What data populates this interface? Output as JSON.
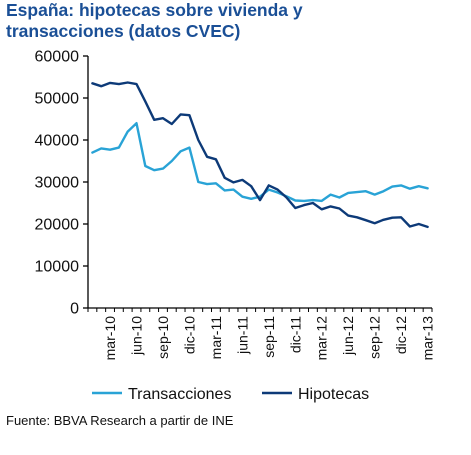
{
  "title_lines": [
    "España: hipotecas sobre vivienda y",
    "transacciones (datos CVEC)"
  ],
  "source": "Fuente: BBVA Research a partir de INE",
  "chart_data": {
    "type": "line",
    "title": "España: hipotecas sobre vivienda y transacciones (datos CVEC)",
    "xlabel": "",
    "ylabel": "",
    "ylim": [
      0,
      60000
    ],
    "yticks": [
      0,
      10000,
      20000,
      30000,
      40000,
      50000,
      60000
    ],
    "x_tick_labels": [
      "mar-10",
      "jun-10",
      "sep-10",
      "dic-10",
      "mar-11",
      "jun-11",
      "sep-11",
      "dic-11",
      "mar-12",
      "jun-12",
      "sep-12",
      "dic-12",
      "mar-13"
    ],
    "x": [
      "ene-10",
      "feb-10",
      "mar-10",
      "abr-10",
      "may-10",
      "jun-10",
      "jul-10",
      "ago-10",
      "sep-10",
      "oct-10",
      "nov-10",
      "dic-10",
      "ene-11",
      "feb-11",
      "mar-11",
      "abr-11",
      "may-11",
      "jun-11",
      "jul-11",
      "ago-11",
      "sep-11",
      "oct-11",
      "nov-11",
      "dic-11",
      "ene-12",
      "feb-12",
      "mar-12",
      "abr-12",
      "may-12",
      "jun-12",
      "jul-12",
      "ago-12",
      "sep-12",
      "oct-12",
      "nov-12",
      "dic-12",
      "ene-13",
      "feb-13",
      "mar-13"
    ],
    "grid": false,
    "legend_position": "bottom",
    "series": [
      {
        "name": "Transacciones",
        "color": "#29a3d6",
        "values": [
          37000,
          38000,
          37700,
          38200,
          42000,
          44000,
          33800,
          32800,
          33200,
          35000,
          37300,
          38200,
          30000,
          29500,
          29700,
          28000,
          28200,
          26500,
          26000,
          26500,
          28200,
          27500,
          26600,
          25600,
          25500,
          25700,
          25500,
          27000,
          26300,
          27400,
          27600,
          27800,
          27000,
          27800,
          28900,
          29200,
          28400,
          29000,
          28500
        ]
      },
      {
        "name": "Hipotecas",
        "color": "#0d3a78",
        "values": [
          53500,
          52800,
          53600,
          53300,
          53700,
          53300,
          49200,
          44800,
          45200,
          43800,
          46100,
          45900,
          40000,
          36000,
          35400,
          31000,
          29900,
          30500,
          29000,
          25700,
          29200,
          28200,
          26300,
          23800,
          24500,
          25000,
          23500,
          24200,
          23700,
          22000,
          21600,
          20900,
          20200,
          21000,
          21500,
          21600,
          19400,
          20000,
          19300
        ]
      }
    ]
  }
}
